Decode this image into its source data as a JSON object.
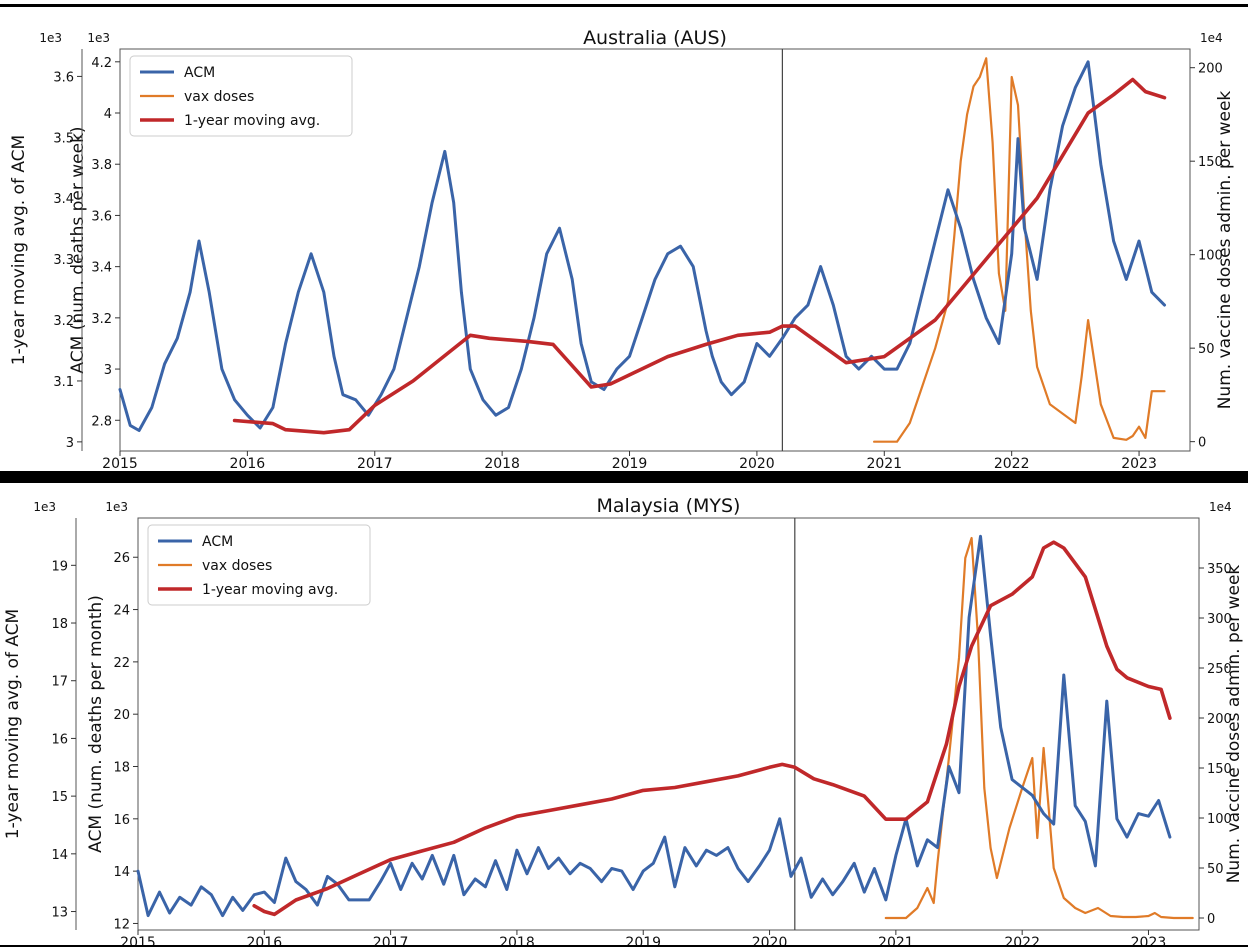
{
  "colors": {
    "acm": "#3a64a8",
    "vax": "#e07b28",
    "avg": "#c0282a",
    "axis": "#555555",
    "rule": "#000000"
  },
  "chart_data": [
    {
      "type": "line",
      "title": "Australia (AUS)",
      "xlabel": "",
      "ylabel_left_outer": "1-year moving avg. of ACM",
      "ylabel_left_inner": "ACM (num. deaths per week)",
      "ylabel_right": "Num. vaccine doses admin. per week",
      "scale_left_outer": "1e3",
      "scale_left_inner": "1e3",
      "scale_right": "1e4",
      "xlim": [
        2015.0,
        2023.4
      ],
      "x_ticks": [
        2015,
        2016,
        2017,
        2018,
        2019,
        2020,
        2021,
        2022,
        2023
      ],
      "ylim_acm": [
        2.68,
        4.25
      ],
      "acm_ticks": [
        2.8,
        3.0,
        3.2,
        3.4,
        3.6,
        3.8,
        4.0,
        4.2
      ],
      "ylim_avg": [
        2.985,
        3.645
      ],
      "avg_ticks": [
        3.0,
        3.1,
        3.2,
        3.3,
        3.4,
        3.5,
        3.6
      ],
      "ylim_vax": [
        -5,
        210
      ],
      "vax_ticks": [
        0,
        50,
        100,
        150,
        200
      ],
      "vline_x": 2020.2,
      "legend": {
        "position": "top-left",
        "entries": [
          "ACM",
          "vax doses",
          "1-year moving avg."
        ]
      },
      "grid": false,
      "series": [
        {
          "name": "ACM",
          "axis": "acm",
          "x": [
            2015.0,
            2015.08,
            2015.15,
            2015.25,
            2015.35,
            2015.45,
            2015.55,
            2015.62,
            2015.7,
            2015.8,
            2015.9,
            2016.0,
            2016.1,
            2016.2,
            2016.3,
            2016.4,
            2016.5,
            2016.6,
            2016.68,
            2016.75,
            2016.85,
            2016.95,
            2017.05,
            2017.15,
            2017.25,
            2017.35,
            2017.45,
            2017.55,
            2017.62,
            2017.68,
            2017.75,
            2017.85,
            2017.95,
            2018.05,
            2018.15,
            2018.25,
            2018.35,
            2018.45,
            2018.55,
            2018.62,
            2018.7,
            2018.8,
            2018.9,
            2019.0,
            2019.1,
            2019.2,
            2019.3,
            2019.4,
            2019.5,
            2019.6,
            2019.65,
            2019.72,
            2019.8,
            2019.9,
            2020.0,
            2020.1,
            2020.2,
            2020.3,
            2020.4,
            2020.5,
            2020.6,
            2020.7,
            2020.8,
            2020.9,
            2021.0,
            2021.1,
            2021.2,
            2021.3,
            2021.4,
            2021.5,
            2021.6,
            2021.7,
            2021.8,
            2021.9,
            2022.0,
            2022.05,
            2022.1,
            2022.2,
            2022.3,
            2022.4,
            2022.5,
            2022.6,
            2022.7,
            2022.8,
            2022.9,
            2023.0,
            2023.1,
            2023.2
          ],
          "y": [
            2.92,
            2.78,
            2.76,
            2.85,
            3.02,
            3.12,
            3.3,
            3.5,
            3.3,
            3.0,
            2.88,
            2.82,
            2.77,
            2.85,
            3.1,
            3.3,
            3.45,
            3.3,
            3.05,
            2.9,
            2.88,
            2.82,
            2.9,
            3.0,
            3.2,
            3.4,
            3.65,
            3.85,
            3.65,
            3.3,
            3.0,
            2.88,
            2.82,
            2.85,
            3.0,
            3.2,
            3.45,
            3.55,
            3.35,
            3.1,
            2.95,
            2.92,
            3.0,
            3.05,
            3.2,
            3.35,
            3.45,
            3.48,
            3.4,
            3.15,
            3.05,
            2.95,
            2.9,
            2.95,
            3.1,
            3.05,
            3.12,
            3.2,
            3.25,
            3.4,
            3.25,
            3.05,
            3.0,
            3.05,
            3.0,
            3.0,
            3.1,
            3.3,
            3.5,
            3.7,
            3.55,
            3.35,
            3.2,
            3.1,
            3.45,
            3.9,
            3.55,
            3.35,
            3.7,
            3.95,
            4.1,
            4.2,
            3.8,
            3.5,
            3.35,
            3.5,
            3.3,
            3.25
          ]
        },
        {
          "name": "vax doses",
          "axis": "vax",
          "x": [
            2020.92,
            2021.1,
            2021.2,
            2021.3,
            2021.4,
            2021.5,
            2021.55,
            2021.6,
            2021.65,
            2021.7,
            2021.75,
            2021.8,
            2021.85,
            2021.9,
            2021.95,
            2022.0,
            2022.05,
            2022.1,
            2022.15,
            2022.2,
            2022.3,
            2022.4,
            2022.5,
            2022.55,
            2022.6,
            2022.7,
            2022.8,
            2022.9,
            2022.95,
            2023.0,
            2023.05,
            2023.1,
            2023.2
          ],
          "y": [
            0,
            0,
            10,
            30,
            50,
            75,
            110,
            150,
            175,
            190,
            195,
            205,
            160,
            90,
            70,
            195,
            180,
            120,
            70,
            40,
            20,
            15,
            10,
            35,
            65,
            20,
            2,
            1,
            3,
            8,
            2,
            27,
            27
          ]
        },
        {
          "name": "1-year moving avg.",
          "axis": "avg",
          "x": [
            2015.9,
            2016.2,
            2016.3,
            2016.6,
            2016.8,
            2017.0,
            2017.3,
            2017.6,
            2017.75,
            2017.9,
            2018.2,
            2018.4,
            2018.55,
            2018.7,
            2018.85,
            2019.0,
            2019.3,
            2019.6,
            2019.85,
            2020.1,
            2020.2,
            2020.3,
            2020.5,
            2020.7,
            2021.0,
            2021.2,
            2021.4,
            2021.6,
            2021.8,
            2022.0,
            2022.2,
            2022.4,
            2022.6,
            2022.8,
            2022.95,
            2023.05,
            2023.2
          ],
          "y": [
            3.035,
            3.03,
            3.02,
            3.015,
            3.02,
            3.06,
            3.1,
            3.15,
            3.175,
            3.17,
            3.165,
            3.16,
            3.125,
            3.09,
            3.095,
            3.11,
            3.14,
            3.16,
            3.175,
            3.18,
            3.19,
            3.19,
            3.16,
            3.13,
            3.14,
            3.17,
            3.2,
            3.25,
            3.3,
            3.35,
            3.4,
            3.47,
            3.54,
            3.57,
            3.595,
            3.575,
            3.565
          ]
        }
      ]
    },
    {
      "type": "line",
      "title": "Malaysia (MYS)",
      "xlabel": "",
      "ylabel_left_outer": "1-year moving avg. of ACM",
      "ylabel_left_inner": "ACM (num. deaths per month)",
      "ylabel_right": "Num. vaccine doses admin. per week",
      "scale_left_outer": "1e3",
      "scale_left_inner": "1e3",
      "scale_right": "1e4",
      "xlim": [
        2015.0,
        2023.4
      ],
      "x_ticks": [
        2015,
        2016,
        2017,
        2018,
        2019,
        2020,
        2021,
        2022,
        2023
      ],
      "ylim_acm": [
        11.75,
        27.5
      ],
      "acm_ticks": [
        12,
        14,
        16,
        18,
        20,
        22,
        24,
        26
      ],
      "ylim_avg": [
        12.68,
        19.82
      ],
      "avg_ticks": [
        13,
        14,
        15,
        16,
        17,
        18,
        19
      ],
      "ylim_vax": [
        -12,
        400
      ],
      "vax_ticks": [
        0,
        50,
        100,
        150,
        200,
        250,
        300,
        350
      ],
      "vline_x": 2020.2,
      "legend": {
        "position": "top-left",
        "entries": [
          "ACM",
          "vax doses",
          "1-year moving avg."
        ]
      },
      "grid": false,
      "series": [
        {
          "name": "ACM",
          "axis": "acm",
          "x": [
            2015.0,
            2015.08,
            2015.17,
            2015.25,
            2015.33,
            2015.42,
            2015.5,
            2015.58,
            2015.67,
            2015.75,
            2015.83,
            2015.92,
            2016.0,
            2016.08,
            2016.17,
            2016.25,
            2016.33,
            2016.42,
            2016.5,
            2016.58,
            2016.67,
            2016.75,
            2016.83,
            2016.92,
            2017.0,
            2017.08,
            2017.17,
            2017.25,
            2017.33,
            2017.42,
            2017.5,
            2017.58,
            2017.67,
            2017.75,
            2017.83,
            2017.92,
            2018.0,
            2018.08,
            2018.17,
            2018.25,
            2018.33,
            2018.42,
            2018.5,
            2018.58,
            2018.67,
            2018.75,
            2018.83,
            2018.92,
            2019.0,
            2019.08,
            2019.17,
            2019.25,
            2019.33,
            2019.42,
            2019.5,
            2019.58,
            2019.67,
            2019.75,
            2019.83,
            2019.92,
            2020.0,
            2020.08,
            2020.17,
            2020.25,
            2020.33,
            2020.42,
            2020.5,
            2020.58,
            2020.67,
            2020.75,
            2020.83,
            2020.92,
            2021.0,
            2021.08,
            2021.17,
            2021.25,
            2021.33,
            2021.42,
            2021.5,
            2021.58,
            2021.67,
            2021.75,
            2021.83,
            2021.92,
            2022.0,
            2022.08,
            2022.17,
            2022.25,
            2022.33,
            2022.42,
            2022.5,
            2022.58,
            2022.67,
            2022.75,
            2022.83,
            2022.92,
            2023.0,
            2023.08,
            2023.17
          ],
          "y": [
            14.0,
            12.3,
            13.2,
            12.4,
            13.0,
            12.7,
            13.4,
            13.1,
            12.3,
            13.0,
            12.5,
            13.1,
            13.2,
            12.8,
            14.5,
            13.6,
            13.3,
            12.7,
            13.8,
            13.5,
            12.9,
            12.9,
            12.9,
            13.6,
            14.3,
            13.3,
            14.3,
            13.7,
            14.6,
            13.5,
            14.6,
            13.1,
            13.7,
            13.4,
            14.4,
            13.3,
            14.8,
            13.9,
            14.9,
            14.1,
            14.5,
            13.9,
            14.3,
            14.1,
            13.6,
            14.1,
            14.0,
            13.3,
            14.0,
            14.3,
            15.3,
            13.4,
            14.9,
            14.2,
            14.8,
            14.6,
            14.9,
            14.1,
            13.6,
            14.2,
            14.8,
            16.0,
            13.8,
            14.5,
            13.0,
            13.7,
            13.1,
            13.6,
            14.3,
            13.2,
            14.1,
            12.9,
            14.6,
            16.0,
            14.2,
            15.2,
            14.9,
            18.0,
            17.0,
            23.7,
            26.8,
            23.0,
            19.5,
            17.5,
            17.2,
            16.9,
            16.2,
            15.8,
            21.5,
            16.5,
            15.9,
            14.2,
            20.5,
            16.0,
            15.3,
            16.2,
            16.1,
            16.7,
            15.3
          ]
        },
        {
          "name": "vax doses",
          "axis": "vax",
          "x": [
            2020.92,
            2021.0,
            2021.08,
            2021.17,
            2021.25,
            2021.3,
            2021.33,
            2021.42,
            2021.5,
            2021.55,
            2021.6,
            2021.65,
            2021.7,
            2021.75,
            2021.8,
            2021.9,
            2022.0,
            2022.08,
            2022.12,
            2022.17,
            2022.25,
            2022.33,
            2022.42,
            2022.5,
            2022.6,
            2022.7,
            2022.8,
            2022.9,
            2023.0,
            2023.05,
            2023.1,
            2023.2,
            2023.35
          ],
          "y": [
            0,
            0,
            0,
            10,
            30,
            15,
            55,
            160,
            260,
            360,
            380,
            280,
            130,
            70,
            40,
            90,
            130,
            160,
            80,
            170,
            50,
            20,
            10,
            5,
            10,
            2,
            1,
            1,
            2,
            5,
            1,
            0,
            0
          ]
        },
        {
          "name": "1-year moving avg.",
          "axis": "avg",
          "x": [
            2015.92,
            2016.0,
            2016.08,
            2016.25,
            2016.5,
            2016.75,
            2017.0,
            2017.25,
            2017.5,
            2017.75,
            2018.0,
            2018.25,
            2018.5,
            2018.75,
            2019.0,
            2019.25,
            2019.5,
            2019.75,
            2020.0,
            2020.1,
            2020.2,
            2020.35,
            2020.5,
            2020.75,
            2020.92,
            2021.08,
            2021.25,
            2021.4,
            2021.5,
            2021.6,
            2021.75,
            2021.92,
            2022.08,
            2022.17,
            2022.25,
            2022.33,
            2022.5,
            2022.67,
            2022.75,
            2022.83,
            2023.0,
            2023.1,
            2023.17
          ],
          "y": [
            13.1,
            13.0,
            12.95,
            13.2,
            13.4,
            13.65,
            13.9,
            14.05,
            14.2,
            14.45,
            14.65,
            14.75,
            14.85,
            14.95,
            15.1,
            15.15,
            15.25,
            15.35,
            15.5,
            15.55,
            15.5,
            15.3,
            15.2,
            15.0,
            14.6,
            14.6,
            14.9,
            15.9,
            16.9,
            17.6,
            18.3,
            18.5,
            18.8,
            19.3,
            19.4,
            19.3,
            18.8,
            17.6,
            17.2,
            17.05,
            16.9,
            16.85,
            16.35
          ]
        }
      ]
    }
  ]
}
